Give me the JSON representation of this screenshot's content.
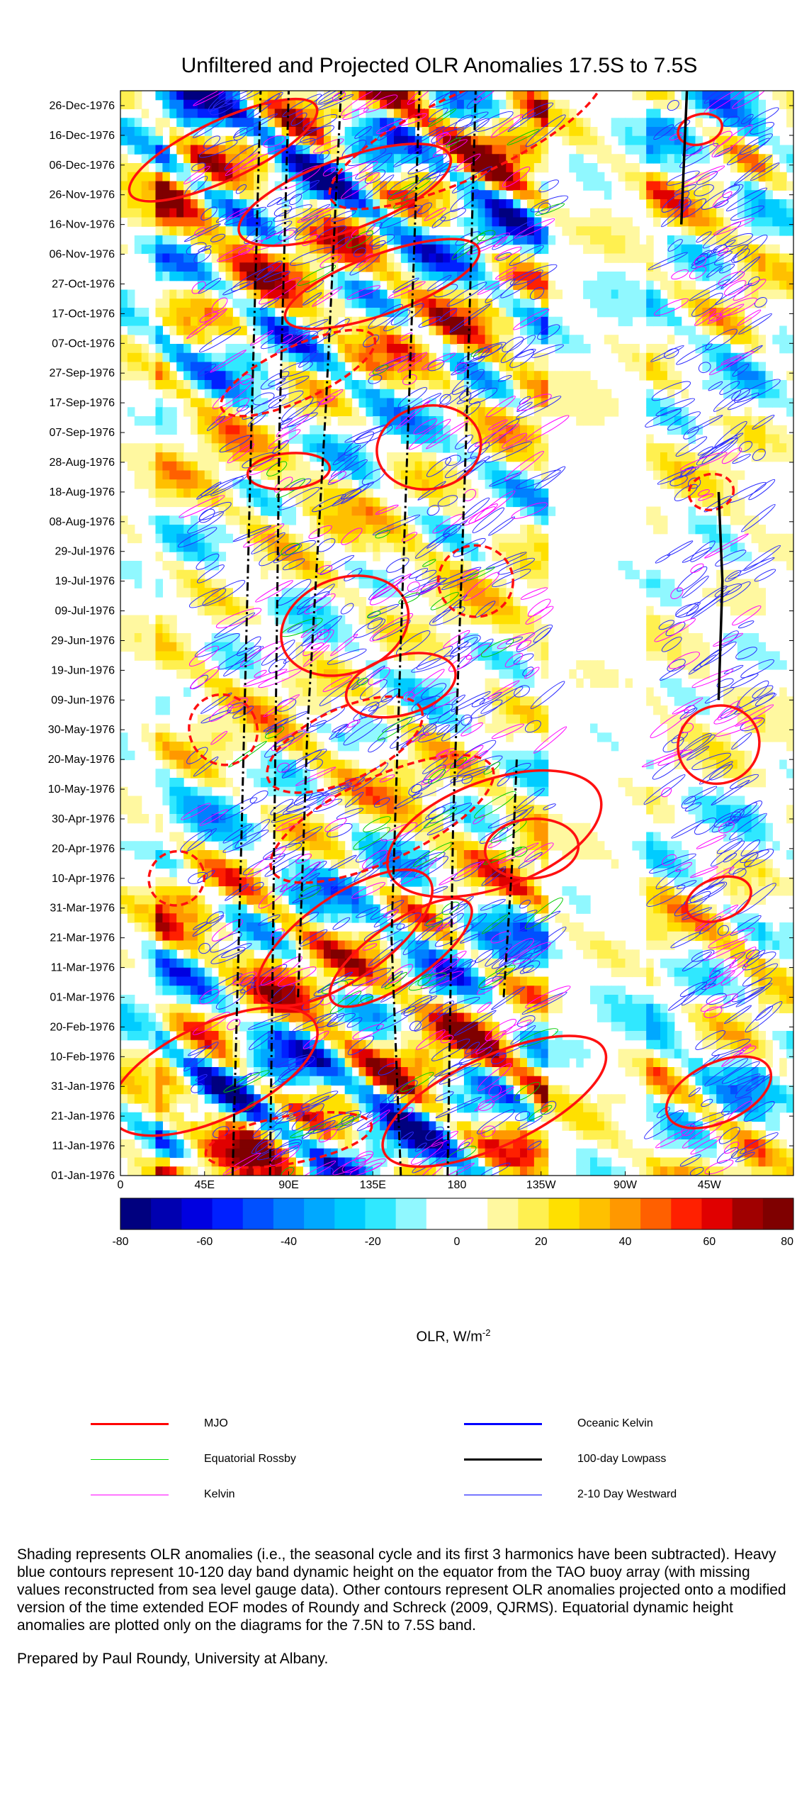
{
  "chart_data": {
    "type": "heatmap",
    "title": "Unfiltered and Projected OLR Anomalies 17.5S to 7.5S",
    "x_ticks": [
      {
        "lon": 0,
        "label": "0"
      },
      {
        "lon": 45,
        "label": "45E"
      },
      {
        "lon": 90,
        "label": "90E"
      },
      {
        "lon": 135,
        "label": "135E"
      },
      {
        "lon": 180,
        "label": "180"
      },
      {
        "lon": 225,
        "label": "135W"
      },
      {
        "lon": 270,
        "label": "90W"
      },
      {
        "lon": 315,
        "label": "45W"
      }
    ],
    "xlim": [
      0,
      360
    ],
    "y_ticks": [
      {
        "day": 0,
        "label": "01-Jan-1976"
      },
      {
        "day": 10,
        "label": "11-Jan-1976"
      },
      {
        "day": 20,
        "label": "21-Jan-1976"
      },
      {
        "day": 30,
        "label": "31-Jan-1976"
      },
      {
        "day": 40,
        "label": "10-Feb-1976"
      },
      {
        "day": 50,
        "label": "20-Feb-1976"
      },
      {
        "day": 60,
        "label": "01-Mar-1976"
      },
      {
        "day": 70,
        "label": "11-Mar-1976"
      },
      {
        "day": 80,
        "label": "21-Mar-1976"
      },
      {
        "day": 90,
        "label": "31-Mar-1976"
      },
      {
        "day": 100,
        "label": "10-Apr-1976"
      },
      {
        "day": 110,
        "label": "20-Apr-1976"
      },
      {
        "day": 120,
        "label": "30-Apr-1976"
      },
      {
        "day": 130,
        "label": "10-May-1976"
      },
      {
        "day": 140,
        "label": "20-May-1976"
      },
      {
        "day": 150,
        "label": "30-May-1976"
      },
      {
        "day": 160,
        "label": "09-Jun-1976"
      },
      {
        "day": 170,
        "label": "19-Jun-1976"
      },
      {
        "day": 180,
        "label": "29-Jun-1976"
      },
      {
        "day": 190,
        "label": "09-Jul-1976"
      },
      {
        "day": 200,
        "label": "19-Jul-1976"
      },
      {
        "day": 210,
        "label": "29-Jul-1976"
      },
      {
        "day": 220,
        "label": "08-Aug-1976"
      },
      {
        "day": 230,
        "label": "18-Aug-1976"
      },
      {
        "day": 240,
        "label": "28-Aug-1976"
      },
      {
        "day": 250,
        "label": "07-Sep-1976"
      },
      {
        "day": 260,
        "label": "17-Sep-1976"
      },
      {
        "day": 270,
        "label": "27-Sep-1976"
      },
      {
        "day": 280,
        "label": "07-Oct-1976"
      },
      {
        "day": 290,
        "label": "17-Oct-1976"
      },
      {
        "day": 300,
        "label": "27-Oct-1976"
      },
      {
        "day": 310,
        "label": "06-Nov-1976"
      },
      {
        "day": 320,
        "label": "16-Nov-1976"
      },
      {
        "day": 330,
        "label": "26-Nov-1976"
      },
      {
        "day": 340,
        "label": "06-Dec-1976"
      },
      {
        "day": 350,
        "label": "16-Dec-1976"
      },
      {
        "day": 360,
        "label": "26-Dec-1976"
      }
    ],
    "ylim": [
      0,
      365
    ],
    "colorbar": {
      "min": -80,
      "max": 80,
      "ticks": [
        "-80",
        "-60",
        "-40",
        "-20",
        "0",
        "20",
        "40",
        "60",
        "80"
      ],
      "label_main": "OLR, W/m",
      "label_sup": "-2",
      "colors": [
        "#00007f",
        "#0000b0",
        "#0000e0",
        "#0020ff",
        "#0050ff",
        "#0080ff",
        "#00a8ff",
        "#00ccff",
        "#30e8ff",
        "#90f8ff",
        "#ffffff",
        "#ffffff",
        "#fff8a0",
        "#fff050",
        "#ffe000",
        "#ffc000",
        "#ff9800",
        "#ff6000",
        "#ff2000",
        "#e00000",
        "#a00000",
        "#7f0000"
      ]
    },
    "legend": [
      {
        "name": "MJO",
        "color": "#ff0000",
        "width": 3
      },
      {
        "name": "Oceanic Kelvin",
        "color": "#0000ff",
        "width": 3
      },
      {
        "name": "Equatorial Rossby",
        "color": "#00dd00",
        "width": 1.5
      },
      {
        "name": "100-day Lowpass",
        "color": "#000000",
        "width": 3
      },
      {
        "name": "Kelvin",
        "color": "#ff00ff",
        "width": 1.5
      },
      {
        "name": "2-10 Day Westward",
        "color": "#0000ff",
        "width": 1.5
      }
    ]
  },
  "footnote": {
    "paragraph1": "Shading represents OLR anomalies (i.e., the seasonal cycle and its first 3 harmonics have been subtracted). Heavy blue contours represent 10-120 day band dynamic height on the equator from the TAO buoy array (with missing values reconstructed from sea level gauge data). Other contours represent OLR anomalies projected onto a modified version of the time extended EOF modes of Roundy and Schreck (2009, QJRMS). Equatorial dynamic height anomalies are plotted only on the diagrams for the 7.5N to 7.5S band.",
    "paragraph2": "Prepared by Paul Roundy, University at Albany."
  }
}
